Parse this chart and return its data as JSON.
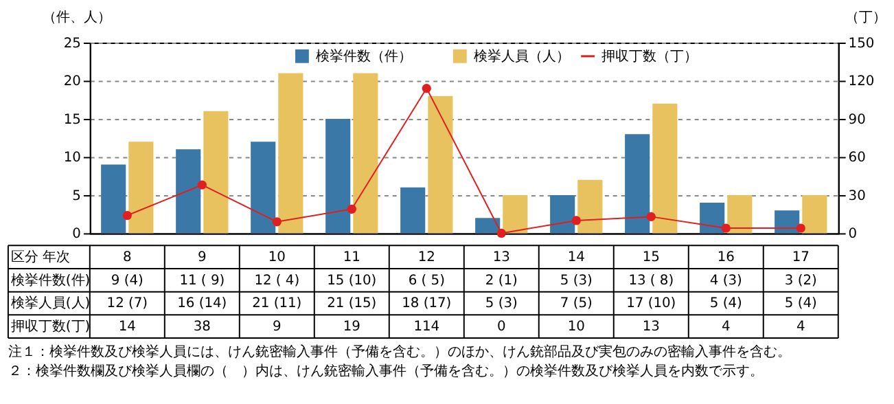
{
  "chart_data": {
    "type": "bar",
    "categories": [
      "8",
      "9",
      "10",
      "11",
      "12",
      "13",
      "14",
      "15",
      "16",
      "17"
    ],
    "ylabel": "（件、人）",
    "y2label": "（丁）",
    "ylim": [
      0,
      25
    ],
    "yticks": [
      0,
      5,
      10,
      15,
      20,
      25
    ],
    "y2lim": [
      0,
      150
    ],
    "y2ticks": [
      0,
      30,
      60,
      90,
      120,
      150
    ],
    "grid": "y",
    "legend": "top",
    "data_labels": true,
    "series": [
      {
        "name": "検挙件数（件）",
        "color": "#3a78a8",
        "values": [
          9,
          11,
          12,
          15,
          6,
          2,
          5,
          13,
          4,
          3
        ],
        "value_labels": [
          "9 (4)",
          "11 ( 9)",
          "12 ( 4)",
          "15 (10)",
          "6 ( 5)",
          "2 (1)",
          "5 (3)",
          "13 ( 8)",
          "4 (3)",
          "3 (2)"
        ]
      },
      {
        "name": "検挙人員（人）",
        "color": "#e8c25e",
        "values": [
          12,
          16,
          21,
          21,
          18,
          5,
          7,
          17,
          5,
          5
        ],
        "value_labels": [
          "12 (7)",
          "16 (14)",
          "21 (11)",
          "21 (15)",
          "18 (17)",
          "5 (3)",
          "7 (5)",
          "17 (10)",
          "5 (4)",
          "5 (4)"
        ]
      },
      {
        "name": "押収丁数（丁）",
        "type": "line",
        "axis": "y2",
        "color": "#e02020",
        "marker": "circle",
        "values": [
          14,
          38,
          9,
          19,
          114,
          0,
          10,
          13,
          4,
          4
        ],
        "value_labels": [
          "14",
          "38",
          "9",
          "19",
          "114",
          "0",
          "10",
          "13",
          "4",
          "4"
        ]
      }
    ],
    "annotations": [
      "区分",
      "年次",
      "検挙件数(件)",
      "検挙人員(人)",
      "押収丁数(丁)",
      "注１：検挙件数及び検挙人員には、けん銃密輸入事件（予備を含む。）のほか、けん銃部品及び実包のみの密輸入事件を含む。",
      "２：検挙件数欄及び検挙人員欄の（　）内は、けん銃密輸入事件（予備を含む。）の検挙件数及び検挙人員を内数で示す。"
    ]
  }
}
